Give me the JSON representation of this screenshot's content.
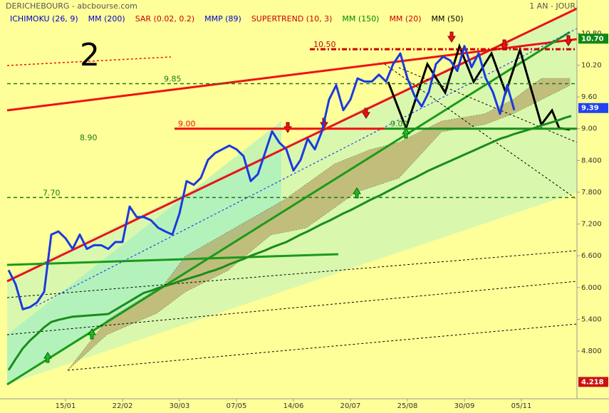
{
  "chart_data": {
    "type": "line",
    "title": "DERICHEBOURG - abcbourse.com",
    "period": "1 AN - JOUR",
    "annotation": "2",
    "legend": [
      {
        "name": "ICHIMOKU (26, 9)",
        "color": "#0000cc"
      },
      {
        "name": "MM (200)",
        "color": "#0000cc"
      },
      {
        "name": "SAR (0.02, 0.2)",
        "color": "#cc0000"
      },
      {
        "name": "MMP (89)",
        "color": "#0000cc"
      },
      {
        "name": "SUPERTREND (10, 3)",
        "color": "#cc0000"
      },
      {
        "name": "MM (150)",
        "color": "#008800"
      },
      {
        "name": "MM (20)",
        "color": "#cc0000"
      },
      {
        "name": "MM (50)",
        "color": "#000000"
      }
    ],
    "categories": [
      null,
      null,
      null,
      null,
      null,
      null,
      null,
      null,
      "15/01",
      null,
      null,
      null,
      null,
      null,
      null,
      null,
      "22/02",
      null,
      null,
      null,
      null,
      null,
      null,
      null,
      "30/03",
      null,
      null,
      null,
      null,
      null,
      null,
      null,
      "07/05",
      null,
      null,
      null,
      null,
      null,
      null,
      null,
      "14/06",
      null,
      null,
      null,
      null,
      null,
      null,
      null,
      "20/07",
      null,
      null,
      null,
      null,
      null,
      null,
      null,
      "25/08",
      null,
      null,
      null,
      null,
      null,
      null,
      null,
      "30/09",
      null,
      null,
      null,
      null,
      null,
      null,
      null,
      "05/11",
      null,
      null,
      null,
      null,
      null,
      null,
      null
    ],
    "series": [
      {
        "color": "#1a3ae0",
        "values": [
          6.33,
          6.06,
          5.59,
          5.63,
          5.72,
          5.92,
          7.0,
          7.06,
          6.93,
          6.73,
          7.0,
          6.73,
          6.8,
          6.8,
          6.73,
          6.86,
          6.86,
          7.53,
          7.33,
          7.33,
          7.27,
          7.13,
          7.06,
          7.0,
          7.4,
          8.01,
          7.94,
          8.07,
          8.41,
          8.54,
          8.61,
          8.68,
          8.61,
          8.48,
          8.01,
          8.14,
          8.54,
          8.95,
          8.74,
          8.61,
          8.21,
          8.41,
          8.81,
          8.61,
          8.95,
          9.55,
          9.82,
          9.35,
          9.55,
          9.95,
          9.89,
          9.89,
          10.02,
          9.89,
          10.22,
          10.42,
          9.95,
          9.62,
          9.42,
          9.69,
          10.22,
          10.36,
          10.29,
          10.09,
          10.56,
          10.16,
          10.42,
          9.95,
          9.69,
          9.28,
          9.82,
          9.35,
          null,
          null,
          null,
          null,
          null,
          null,
          null,
          null
        ]
      },
      {
        "color": "#1a8c1a",
        "values": [
          4.44,
          4.65,
          4.85,
          5.0,
          5.12,
          5.25,
          5.35,
          5.39,
          5.42,
          5.45,
          5.46,
          5.47,
          5.48,
          5.49,
          5.5,
          5.58,
          5.66,
          5.74,
          5.82,
          5.9,
          5.94,
          5.99,
          6.03,
          6.07,
          6.12,
          6.16,
          6.2,
          6.24,
          6.29,
          6.33,
          6.38,
          6.44,
          6.49,
          6.54,
          6.6,
          6.65,
          6.7,
          6.76,
          6.81,
          6.86,
          6.93,
          7.0,
          7.06,
          7.13,
          7.2,
          7.26,
          7.33,
          7.4,
          7.46,
          7.53,
          7.6,
          7.67,
          7.73,
          7.8,
          7.87,
          7.94,
          8.01,
          8.07,
          8.14,
          8.21,
          8.27,
          8.33,
          8.39,
          8.45,
          8.51,
          8.57,
          8.63,
          8.69,
          8.75,
          8.81,
          8.85,
          8.9,
          8.94,
          8.98,
          9.02,
          9.07,
          9.11,
          9.15,
          9.2,
          9.24
        ]
      }
    ],
    "levels": [
      {
        "value": 10.5,
        "label": "10.50",
        "color": "#cc0000"
      },
      {
        "value": 9.85,
        "label": "9.85",
        "color": "#1a7a1a"
      },
      {
        "value": 9,
        "label": "9.00",
        "color": "#ee1111"
      },
      {
        "value": 9,
        "label": "9.00",
        "color": "#1a8c1a"
      },
      {
        "value": 8.9,
        "label": "8.90",
        "color": "#1a7a1a"
      },
      {
        "value": 7.7,
        "label": "7.70",
        "color": "#1a7a1a"
      }
    ],
    "ylim": [
      3.9,
      11.43
    ],
    "yticks": [
      {
        "value": 10.8,
        "label": "10.80"
      },
      {
        "value": 10.2,
        "label": "10.20"
      },
      {
        "value": 9.6,
        "label": "9.60"
      },
      {
        "value": 9,
        "label": "9.00"
      },
      {
        "value": 8.4,
        "label": "8.400"
      },
      {
        "value": 7.8,
        "label": "7.800"
      },
      {
        "value": 7.2,
        "label": "7.200"
      },
      {
        "value": 6.6,
        "label": "6.600"
      },
      {
        "value": 6,
        "label": "6.000"
      },
      {
        "value": 5.4,
        "label": "5.400"
      },
      {
        "value": 4.8,
        "label": "4.800"
      }
    ],
    "price_tags": [
      {
        "value": 10.7,
        "label": "10.70",
        "color": "#118811"
      },
      {
        "value": 9.39,
        "label": "9.39",
        "color": "#2244ee"
      },
      {
        "value": 4.218,
        "label": "4.218",
        "color": "#cc1111"
      }
    ]
  }
}
